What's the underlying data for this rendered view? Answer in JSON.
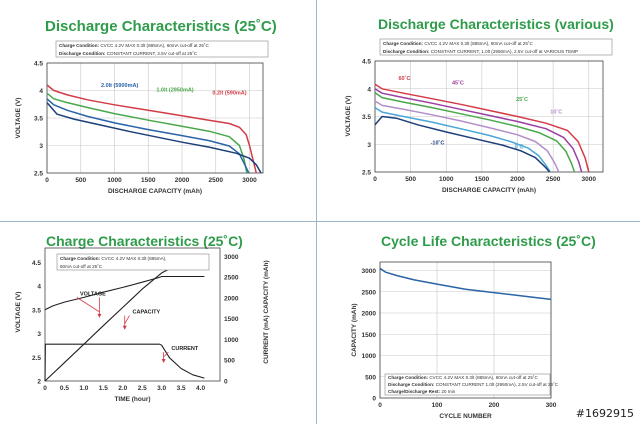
{
  "watermark": "#1692915",
  "colors": {
    "title": "#2e9c4a",
    "blue": "#2a63a8",
    "green": "#49a84a",
    "red": "#d33b47",
    "purple": "#9a3fa1",
    "lavender": "#b48ec9",
    "lightblue": "#4aa6d8",
    "darkblue": "#1c3f7a",
    "curve": "#222222",
    "grid": "#c8c8c8",
    "axis": "#444444"
  },
  "chart_data": [
    {
      "type": "line",
      "title": "Discharge Characteristics (25˚C)",
      "condition_lines": [
        [
          "Charge Condition:",
          "CVCC 4.2V MAX 0.3lt (885mA), 60mA cut-off at 25˚C"
        ],
        [
          "Discharge Condition:",
          "CONSTANT CURRENT, 2.5V cut-off at 25˚C"
        ]
      ],
      "xlabel": "DISCHARGE CAPACITY (mAh)",
      "ylabel": "VOLTAGE (V)",
      "xlim": [
        0,
        3200
      ],
      "ylim": [
        2.5,
        4.5
      ],
      "xticks": [
        0,
        500,
        1000,
        1500,
        2000,
        2500,
        3000
      ],
      "yticks": [
        2.5,
        3.0,
        3.5,
        4.0,
        4.5
      ],
      "grid": true,
      "series": [
        {
          "name": "0.2lt (590mA)",
          "color": "red",
          "label_at": [
            2450,
            3.93
          ],
          "x": [
            0,
            100,
            300,
            600,
            1000,
            1500,
            2000,
            2400,
            2700,
            2850,
            2950,
            3000,
            3050,
            3100
          ],
          "y": [
            4.1,
            4.0,
            3.92,
            3.83,
            3.74,
            3.64,
            3.54,
            3.46,
            3.4,
            3.33,
            3.2,
            3.0,
            2.75,
            2.5
          ]
        },
        {
          "name": "1.0lt (2950mA)",
          "color": "green",
          "label_at": [
            1620,
            3.98
          ],
          "x": [
            0,
            100,
            300,
            600,
            1000,
            1500,
            2000,
            2400,
            2700,
            2850,
            2920,
            2960
          ],
          "y": [
            3.95,
            3.85,
            3.78,
            3.69,
            3.58,
            3.46,
            3.35,
            3.26,
            3.16,
            3.0,
            2.75,
            2.5
          ]
        },
        {
          "name": "2.0lt (5900mA)",
          "color": "blue",
          "label_at": [
            800,
            4.06
          ],
          "x": [
            0,
            100,
            300,
            600,
            1000,
            1500,
            2000,
            2400,
            2700,
            2850,
            2930,
            2990
          ],
          "y": [
            3.85,
            3.74,
            3.64,
            3.53,
            3.41,
            3.29,
            3.18,
            3.09,
            2.99,
            2.85,
            2.65,
            2.5
          ]
        },
        {
          "name": "",
          "color": "darkblue",
          "label_at": null,
          "x": [
            0,
            150,
            400,
            800,
            1200,
            1600,
            2000,
            2400,
            2800,
            3000,
            3100,
            3170
          ],
          "y": [
            3.78,
            3.57,
            3.48,
            3.37,
            3.26,
            3.16,
            3.06,
            2.97,
            2.86,
            2.77,
            2.65,
            2.5
          ]
        }
      ]
    },
    {
      "type": "line",
      "title": "Discharge Characteristics (various)",
      "condition_lines": [
        [
          "Charge Condition:",
          "CVCC 4.2V MAX 0.3lt (885mA), 60mA cut-off at 25˚C"
        ],
        [
          "Discharge Condition:",
          "CONSTANT CURRENT, 1.0lt (2950mA), 2.5V cut-off at VARIOUS TEMP"
        ]
      ],
      "xlabel": "DISCHARGE CAPACITY (mAh)",
      "ylabel": "VOLTAGE (V)",
      "xlim": [
        0,
        3200
      ],
      "ylim": [
        2.5,
        4.5
      ],
      "xticks": [
        0,
        500,
        1000,
        1500,
        2000,
        2500,
        3000
      ],
      "yticks": [
        2.5,
        3.0,
        3.5,
        4.0,
        4.5
      ],
      "grid": true,
      "series": [
        {
          "name": "60˚C",
          "color": "red",
          "label_at": [
            330,
            4.16
          ],
          "x": [
            0,
            100,
            400,
            800,
            1200,
            1600,
            2000,
            2400,
            2700,
            2850,
            2950,
            3000
          ],
          "y": [
            4.08,
            4.0,
            3.92,
            3.82,
            3.72,
            3.61,
            3.5,
            3.38,
            3.25,
            3.05,
            2.75,
            2.5
          ]
        },
        {
          "name": "45˚C",
          "color": "purple",
          "label_at": [
            1080,
            4.08
          ],
          "x": [
            0,
            100,
            400,
            800,
            1200,
            1600,
            2000,
            2400,
            2650,
            2780,
            2860,
            2900
          ],
          "y": [
            4.0,
            3.92,
            3.84,
            3.74,
            3.63,
            3.52,
            3.41,
            3.28,
            3.12,
            2.92,
            2.68,
            2.5
          ]
        },
        {
          "name": "25˚C",
          "color": "green",
          "label_at": [
            1980,
            3.78
          ],
          "x": [
            0,
            100,
            400,
            800,
            1200,
            1600,
            2000,
            2300,
            2550,
            2680,
            2760,
            2800
          ],
          "y": [
            3.93,
            3.84,
            3.76,
            3.66,
            3.55,
            3.44,
            3.32,
            3.21,
            3.06,
            2.87,
            2.65,
            2.5
          ]
        },
        {
          "name": "10˚C",
          "color": "lavender",
          "label_at": [
            2460,
            3.55
          ],
          "x": [
            0,
            100,
            400,
            800,
            1200,
            1600,
            2000,
            2250,
            2420,
            2520,
            2580
          ],
          "y": [
            3.78,
            3.7,
            3.63,
            3.53,
            3.42,
            3.3,
            3.17,
            3.05,
            2.88,
            2.67,
            2.5
          ]
        },
        {
          "name": "0˚C",
          "color": "lightblue",
          "label_at": [
            1960,
            2.92
          ],
          "x": [
            0,
            100,
            400,
            800,
            1200,
            1600,
            1900,
            2150,
            2300,
            2400,
            2460
          ],
          "y": [
            3.66,
            3.58,
            3.5,
            3.4,
            3.28,
            3.16,
            3.05,
            2.93,
            2.79,
            2.62,
            2.5
          ]
        },
        {
          "name": "-10˚C",
          "color": "darkblue",
          "label_at": [
            780,
            3.0
          ],
          "x": [
            0,
            100,
            300,
            600,
            1000,
            1400,
            1800,
            2050,
            2250,
            2380,
            2450
          ],
          "y": [
            3.35,
            3.5,
            3.47,
            3.35,
            3.22,
            3.1,
            2.98,
            2.88,
            2.76,
            2.6,
            2.5
          ]
        }
      ]
    },
    {
      "type": "line",
      "title": "Charge Characteristics (25˚C)",
      "condition_lines": [
        [
          "Charge Condition:",
          "CVCC 4.2V MAX 0.3lt (885mA),"
        ],
        [
          "",
          "60mA cut-off at 25˚C"
        ]
      ],
      "xlabel": "TIME (hour)",
      "ylabel": "VOLTAGE (V)",
      "y2label": "CURRENT (mA) CAPACITY (mAh)",
      "xlim": [
        0,
        4.5
      ],
      "ylim": [
        2.0,
        4.8
      ],
      "y2lim": [
        0,
        3200
      ],
      "xticks": [
        0,
        0.5,
        1.0,
        1.5,
        2.0,
        2.5,
        3.0,
        3.5,
        4.0
      ],
      "xtick_labels": [
        "0",
        "0.5",
        "1.0",
        "1.5",
        "2.0",
        "2.5",
        "3.0",
        "3.5",
        "4.0"
      ],
      "yticks": [
        2.0,
        2.5,
        3.0,
        3.5,
        4.0,
        4.5
      ],
      "yticks_right": [
        0,
        500,
        1000,
        1500,
        2000,
        2500,
        3000
      ],
      "grid": false,
      "annotations": [
        {
          "text": "VOLTAGE",
          "at": [
            0.9,
            3.8
          ],
          "arrow_to": [
            1.4,
            3.35
          ]
        },
        {
          "text": "CAPACITY",
          "at": [
            2.25,
            3.42
          ],
          "arrow_to": [
            2.05,
            3.1
          ]
        },
        {
          "text": "CURRENT",
          "at": [
            3.25,
            2.65
          ],
          "arrow_to": [
            3.05,
            2.4
          ]
        }
      ],
      "series": [
        {
          "name": "VOLTAGE",
          "axis": "left",
          "x": [
            0,
            0.2,
            0.5,
            1.0,
            1.5,
            2.0,
            2.5,
            2.9,
            3.0,
            3.5,
            4.0,
            4.1
          ],
          "y": [
            3.5,
            3.58,
            3.66,
            3.76,
            3.87,
            3.97,
            4.08,
            4.17,
            4.2,
            4.2,
            4.2,
            4.2
          ]
        },
        {
          "name": "CAPACITY",
          "axis": "right",
          "x": [
            0,
            0.5,
            1.0,
            1.5,
            2.0,
            2.5,
            3.0,
            3.5,
            4.0,
            4.1
          ],
          "y": [
            0,
            440,
            885,
            1330,
            1770,
            2210,
            2600,
            2840,
            2920,
            2930
          ]
        },
        {
          "name": "CURRENT",
          "axis": "right",
          "x": [
            0,
            0.01,
            2.95,
            3.0,
            3.2,
            3.5,
            3.8,
            4.1
          ],
          "y": [
            0,
            885,
            885,
            860,
            560,
            300,
            150,
            70
          ]
        }
      ]
    },
    {
      "type": "line",
      "title": "Cycle Life Characteristics (25˚C)",
      "condition_lines": [
        [
          "Charge Condition:",
          "CVCC 4.2V MAX 0.3lt (885mA), 60mA cut-off at 25˚C"
        ],
        [
          "Discharge Condition:",
          "CONSTANT CURRENT 1.0lt (2950mA), 2.5V cut-off at 25˚C"
        ],
        [
          "Charge/Discharge Rest:",
          "20 min"
        ]
      ],
      "xlabel": "CYCLE NUMBER",
      "ylabel": "CAPACITY (mAh)",
      "xlim": [
        0,
        300
      ],
      "ylim": [
        0,
        3200
      ],
      "xticks": [
        0,
        100,
        200,
        300
      ],
      "yticks": [
        0,
        500,
        1000,
        1500,
        2000,
        2500,
        3000
      ],
      "grid": true,
      "series": [
        {
          "name": "",
          "color": "blue",
          "x": [
            0,
            10,
            30,
            60,
            100,
            150,
            200,
            250,
            300
          ],
          "y": [
            3050,
            2960,
            2880,
            2780,
            2680,
            2560,
            2480,
            2400,
            2320
          ]
        }
      ]
    }
  ]
}
